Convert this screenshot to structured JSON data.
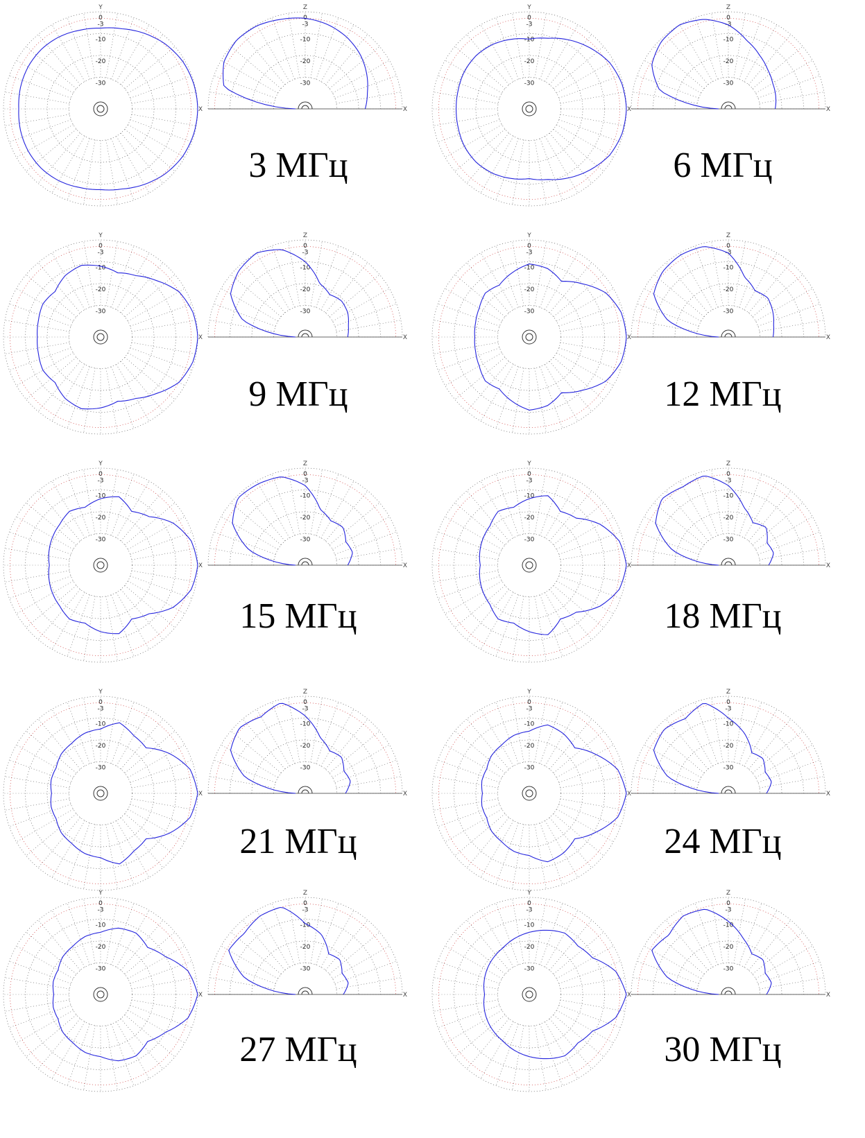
{
  "chart_data": {
    "type": "polar",
    "grid_rings_db": [
      0,
      -3,
      -10,
      -20,
      -30
    ],
    "ring_labels": [
      "0",
      "-3",
      "-10",
      "-20",
      "-30"
    ],
    "min_db": -40,
    "colors": {
      "pattern": "#2222dd",
      "grid": "#555555",
      "grid_red": "#cc3333"
    },
    "panels": [
      {
        "label": "3 МГц",
        "azimuth": {
          "axis_top": "Y",
          "axis_right": "X",
          "pattern_db": [
            0,
            -0.3,
            -1,
            -2.5,
            -4.5,
            -6.5,
            -7.5,
            -7.2,
            -6.4,
            -6.0,
            -6.1,
            -6.5,
            -7.0
          ]
        },
        "elevation": {
          "axis_top": "Z",
          "axis_right": "X",
          "pattern_db": [
            -40,
            -6,
            -1.5,
            0,
            -0.5,
            -2,
            -3,
            -4.5,
            -6.5,
            -9,
            -12,
            -15,
            -17
          ]
        }
      },
      {
        "label": "6 МГц",
        "azimuth": {
          "axis_top": "Y",
          "axis_right": "X",
          "pattern_db": [
            0,
            -0.5,
            -2,
            -5,
            -8,
            -11,
            -12.5,
            -11.5,
            -10.5,
            -10,
            -10.2,
            -10.8,
            -11
          ]
        },
        "elevation": {
          "axis_top": "Z",
          "axis_right": "X",
          "pattern_db": [
            -40,
            -12,
            -4,
            -1,
            0,
            -2,
            -6,
            -12,
            -16,
            -19,
            -21,
            -22,
            -23
          ]
        }
      },
      {
        "label": "9 МГц",
        "azimuth": {
          "axis_top": "Y",
          "axis_right": "X",
          "pattern_db": [
            0,
            -0.7,
            -3,
            -8,
            -12,
            -14,
            -12,
            -10.5,
            -12,
            -15,
            -14,
            -15,
            -15.5
          ]
        },
        "elevation": {
          "axis_top": "Z",
          "axis_right": "X",
          "pattern_db": [
            -40,
            -15,
            -5,
            -1.5,
            0,
            -3,
            -10,
            -19,
            -22,
            -21,
            -22,
            -24,
            -25
          ]
        }
      },
      {
        "label": "12 МГц",
        "azimuth": {
          "axis_top": "Y",
          "axis_right": "X",
          "pattern_db": [
            0,
            -0.9,
            -4,
            -10,
            -15,
            -12,
            -11,
            -14,
            -17,
            -16,
            -18,
            -19,
            -19.5
          ]
        },
        "elevation": {
          "axis_top": "Z",
          "axis_right": "X",
          "pattern_db": [
            -40,
            -16,
            -5,
            -2,
            -1,
            -1.5,
            -6,
            -16,
            -20,
            -19,
            -21,
            -23,
            -24
          ]
        }
      },
      {
        "label": "15 МГц",
        "azimuth": {
          "axis_top": "Y",
          "axis_right": "X",
          "pattern_db": [
            0,
            -1.5,
            -6,
            -13,
            -16,
            -12,
            -14,
            -17,
            -16,
            -18,
            -19,
            -20,
            -21
          ]
        },
        "elevation": {
          "axis_top": "Z",
          "axis_right": "X",
          "pattern_db": [
            -40,
            -18,
            -6,
            -1,
            -1.5,
            -2.5,
            -8,
            -18,
            -21,
            -20,
            -23,
            -22,
            -25
          ]
        }
      },
      {
        "label": "18 МГц",
        "azimuth": {
          "axis_top": "Y",
          "axis_right": "X",
          "pattern_db": [
            0,
            -1.8,
            -7,
            -14,
            -16,
            -11.5,
            -14,
            -17,
            -16,
            -19,
            -20,
            -21,
            -22
          ]
        },
        "elevation": {
          "axis_top": "Z",
          "axis_right": "X",
          "pattern_db": [
            -40,
            -18,
            -6,
            -1.5,
            -3,
            -2,
            -8,
            -17,
            -22,
            -20,
            -24,
            -23,
            -26
          ]
        }
      },
      {
        "label": "21 МГц",
        "azimuth": {
          "axis_top": "Y",
          "axis_right": "X",
          "pattern_db": [
            0,
            -2,
            -8,
            -15,
            -14,
            -11,
            -15,
            -16,
            -18,
            -19,
            -21,
            -21,
            -22
          ]
        },
        "elevation": {
          "axis_top": "Z",
          "axis_right": "X",
          "pattern_db": [
            -40,
            -16,
            -5,
            -2,
            -4,
            -1.5,
            -9,
            -18,
            -22,
            -21,
            -24,
            -23,
            -26
          ]
        }
      },
      {
        "label": "24 МГц",
        "azimuth": {
          "axis_top": "Y",
          "axis_right": "X",
          "pattern_db": [
            0,
            -2.5,
            -9,
            -15,
            -13,
            -12,
            -16,
            -17,
            -19,
            -20,
            -22,
            -22,
            -23
          ]
        },
        "elevation": {
          "axis_top": "Z",
          "axis_right": "X",
          "pattern_db": [
            -40,
            -16,
            -5,
            -3,
            -5,
            -1.5,
            -10,
            -16,
            -23,
            -22,
            -25,
            -24,
            -27
          ]
        }
      },
      {
        "label": "27 МГц",
        "azimuth": {
          "axis_top": "Y",
          "axis_right": "X",
          "pattern_db": [
            0,
            -3,
            -10,
            -14,
            -12,
            -13,
            -16,
            -17,
            -19,
            -20,
            -22,
            -22,
            -23
          ]
        },
        "elevation": {
          "axis_top": "Z",
          "axis_right": "X",
          "pattern_db": [
            -40,
            -16,
            -4,
            -5,
            -3,
            -3,
            -12,
            -16,
            -23,
            -22,
            -25,
            -24,
            -27
          ]
        }
      },
      {
        "label": "30 МГц",
        "azimuth": {
          "axis_top": "Y",
          "axis_right": "X",
          "pattern_db": [
            0,
            -3.5,
            -11,
            -13,
            -12,
            -14,
            -16,
            -18,
            -20,
            -21,
            -22,
            -23,
            -24
          ]
        },
        "elevation": {
          "axis_top": "Z",
          "axis_right": "X",
          "pattern_db": [
            -40,
            -16,
            -4,
            -6,
            -3,
            -4,
            -11,
            -18,
            -23,
            -22,
            -25,
            -24,
            -27
          ]
        }
      }
    ]
  }
}
